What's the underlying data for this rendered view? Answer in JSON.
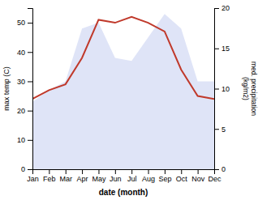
{
  "chart_data": {
    "type": "line",
    "categories": [
      "Jan",
      "Feb",
      "Mar",
      "Apr",
      "May",
      "Jun",
      "Jul",
      "Aug",
      "Sep",
      "Oct",
      "Nov",
      "Dec"
    ],
    "series": [
      {
        "type": "area",
        "color": "#c5cdf0",
        "values": [
          23,
          27,
          30,
          48,
          50,
          38,
          37,
          45,
          53,
          48,
          30,
          30
        ]
      },
      {
        "type": "line",
        "color": "#c0392b",
        "values": [
          24,
          27,
          29,
          38,
          51,
          50,
          52,
          50,
          47,
          34,
          25,
          24
        ]
      }
    ],
    "xlabel": "date (month)",
    "ylabel": "max temp (C)",
    "y2label": "med. precipitation\n(kg/m2)",
    "ylim": [
      0,
      55
    ],
    "yticks": [
      0,
      10,
      20,
      30,
      40,
      50
    ],
    "y2lim": [
      0,
      20
    ],
    "y2ticks": [
      0,
      5,
      10,
      15,
      20
    ],
    "grid": false
  }
}
